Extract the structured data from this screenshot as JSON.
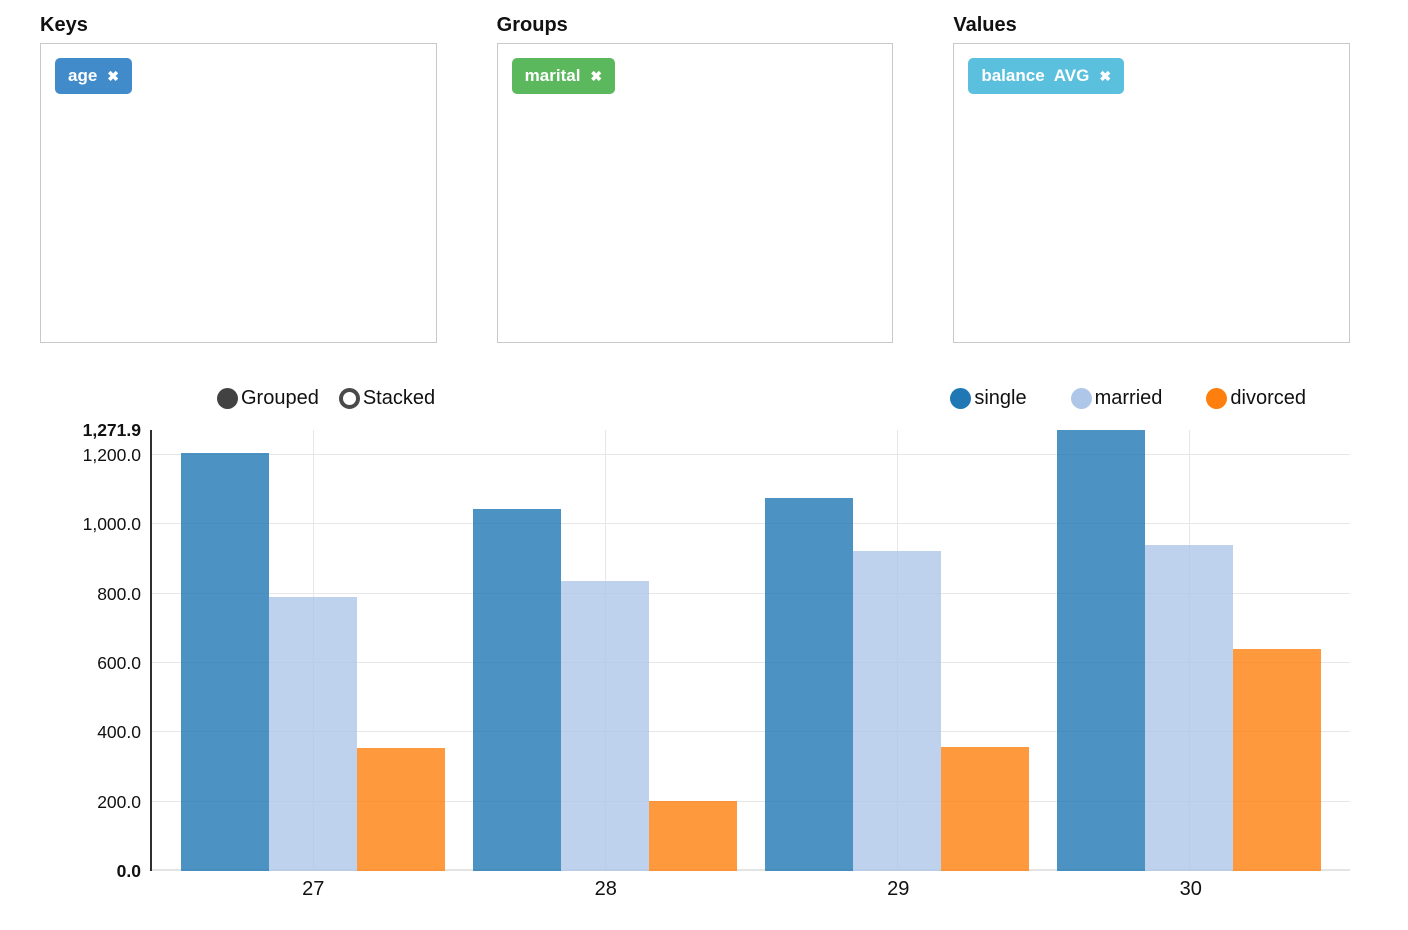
{
  "panels": [
    {
      "label": "Keys",
      "tag": {
        "text": "age",
        "remove_icon": "✖",
        "color": "#428bca"
      }
    },
    {
      "label": "Groups",
      "tag": {
        "text": "marital",
        "remove_icon": "✖",
        "color": "#5cb85c"
      }
    },
    {
      "label": "Values",
      "tag": {
        "text": "balance AVG",
        "remove_icon": "✖",
        "color": "#5bc0de"
      }
    }
  ],
  "chart_controls": {
    "modes": [
      {
        "label": "Grouped",
        "selected": true
      },
      {
        "label": "Stacked",
        "selected": false
      }
    ]
  },
  "chart_data": {
    "type": "bar",
    "mode": "grouped",
    "title": "",
    "xlabel": "",
    "ylabel": "",
    "categories": [
      "27",
      "28",
      "29",
      "30"
    ],
    "series": [
      {
        "name": "single",
        "color": "#1f77b4",
        "bar_color": "rgba(31,119,180,0.8)",
        "values": [
          1205,
          1044,
          1077,
          1271.9
        ]
      },
      {
        "name": "married",
        "color": "#aec7e8",
        "bar_color": "rgba(174,199,232,0.8)",
        "values": [
          789,
          836,
          922,
          939
        ]
      },
      {
        "name": "divorced",
        "color": "#ff7f0e",
        "bar_color": "rgba(255,127,14,0.8)",
        "values": [
          355,
          203,
          357,
          639
        ]
      }
    ],
    "ylim": [
      0,
      1271.9
    ],
    "yticks": [
      {
        "value": 0,
        "label": "0.0",
        "bold": true,
        "grid": false
      },
      {
        "value": 200,
        "label": "200.0",
        "bold": false,
        "grid": true
      },
      {
        "value": 400,
        "label": "400.0",
        "bold": false,
        "grid": true
      },
      {
        "value": 600,
        "label": "600.0",
        "bold": false,
        "grid": true
      },
      {
        "value": 800,
        "label": "800.0",
        "bold": false,
        "grid": true
      },
      {
        "value": 1000,
        "label": "1,000.0",
        "bold": false,
        "grid": true
      },
      {
        "value": 1200,
        "label": "1,200.0",
        "bold": false,
        "grid": true
      },
      {
        "value": 1271.9,
        "label": "1,271.9",
        "bold": true,
        "grid": false
      }
    ],
    "grid": true,
    "legend_position": "top-right"
  }
}
